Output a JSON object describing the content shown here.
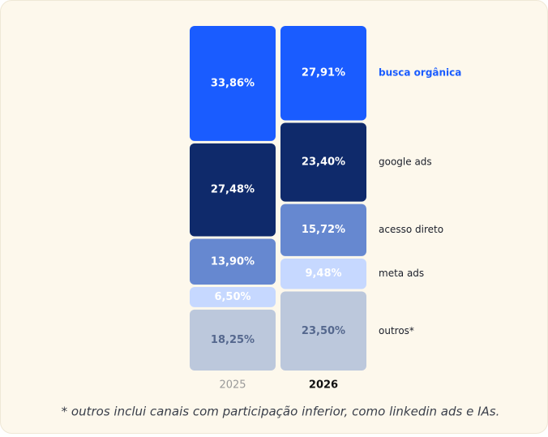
{
  "chart_data": {
    "type": "stacked-bar",
    "categories": [
      "2025",
      "2026"
    ],
    "series": [
      {
        "name": "busca orgânica",
        "color": "#1a5cff",
        "label_color": "#ffffff",
        "values": [
          33.86,
          27.91
        ],
        "value_labels": [
          "33,86%",
          "27,91%"
        ]
      },
      {
        "name": "google ads",
        "color": "#0f2a6b",
        "label_color": "#ffffff",
        "values": [
          27.48,
          23.4
        ],
        "value_labels": [
          "27,48%",
          "23,40%"
        ]
      },
      {
        "name": "acesso direto",
        "color": "#6688d0",
        "label_color": "#ffffff",
        "values": [
          13.9,
          15.72
        ],
        "value_labels": [
          "13,90%",
          "15,72%"
        ]
      },
      {
        "name": "meta ads",
        "color": "#c6d8ff",
        "label_color": "#ffffff",
        "values": [
          6.5,
          9.48
        ],
        "value_labels": [
          "6,50%",
          "9,48%"
        ]
      },
      {
        "name": "outros*",
        "color": "#bcc8dc",
        "label_color": "#55688e",
        "values": [
          18.25,
          23.5
        ],
        "value_labels": [
          "18,25%",
          "23,50%"
        ]
      }
    ],
    "footnote": "* outros inclui canais com participação inferior, como linkedin ads e IAs."
  }
}
